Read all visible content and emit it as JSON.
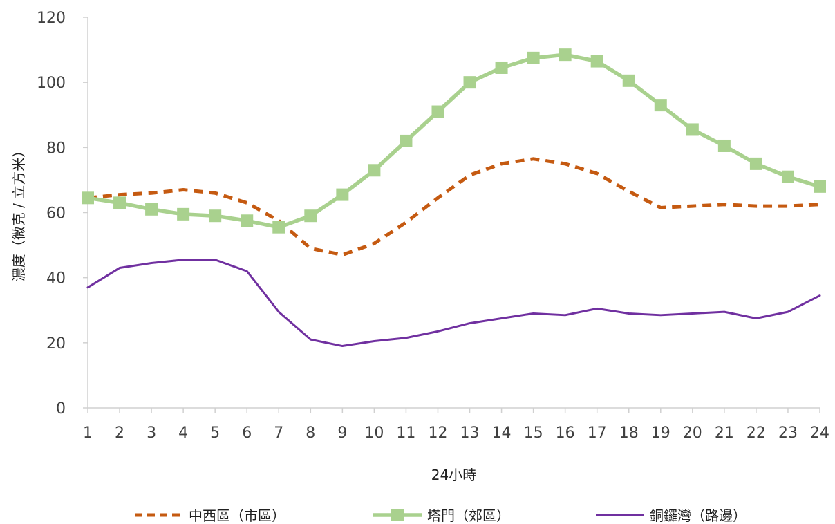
{
  "chart_data": {
    "type": "line",
    "xlabel": "24小時",
    "ylabel": "濃度（微克 / 立方米）",
    "x": [
      1,
      2,
      3,
      4,
      5,
      6,
      7,
      8,
      9,
      10,
      11,
      12,
      13,
      14,
      15,
      16,
      17,
      18,
      19,
      20,
      21,
      22,
      23,
      24
    ],
    "ylim": [
      0,
      120
    ],
    "yticks": [
      0,
      20,
      40,
      60,
      80,
      100,
      120
    ],
    "grid": false,
    "legend_position": "bottom",
    "series": [
      {
        "name": "中西區（市區）",
        "color": "#C55A11",
        "style": "dashed",
        "values": [
          64.5,
          65.5,
          66,
          67,
          66,
          63,
          57.5,
          49,
          47,
          50.5,
          57,
          64.5,
          71.5,
          75,
          76.5,
          75,
          72,
          66.5,
          61.5,
          62,
          62.5,
          62,
          62,
          62.5
        ]
      },
      {
        "name": "塔門（郊區）",
        "color": "#A9D18E",
        "style": "solid-square-markers",
        "values": [
          64.5,
          63,
          61,
          59.5,
          59,
          57.5,
          55.5,
          59,
          65.5,
          73,
          82,
          91,
          100,
          104.5,
          107.5,
          108.5,
          106.5,
          100.5,
          93,
          85.5,
          80.5,
          75,
          71,
          68
        ]
      },
      {
        "name": "銅鑼灣（路邊）",
        "color": "#7030A0",
        "style": "solid",
        "values": [
          37,
          43,
          44.5,
          45.5,
          45.5,
          42,
          29.5,
          21,
          19,
          20.5,
          21.5,
          23.5,
          26,
          27.5,
          29,
          28.5,
          30.5,
          29,
          28.5,
          29,
          29.5,
          27.5,
          29.5,
          34.5
        ]
      }
    ]
  }
}
